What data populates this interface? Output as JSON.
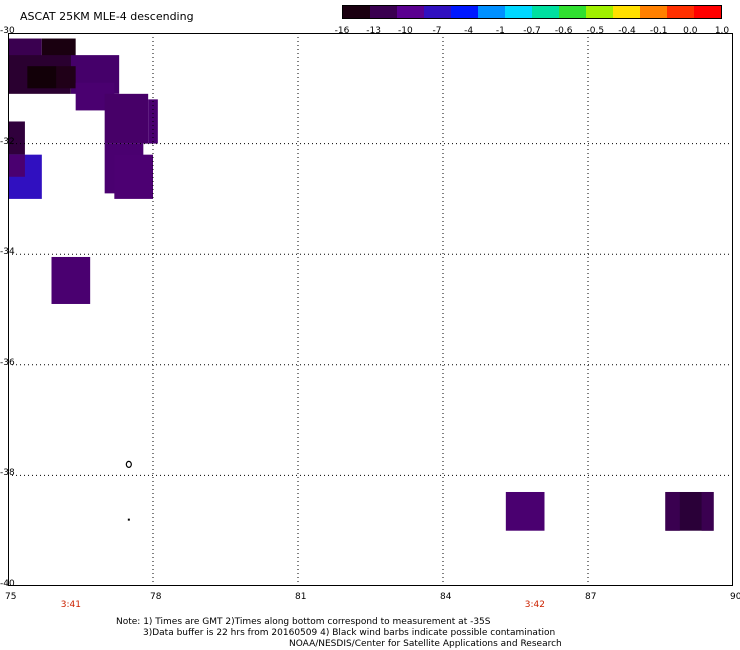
{
  "title": "ASCAT 25KM MLE-4 descending",
  "colorbar": {
    "labels": [
      "-16",
      "-13",
      "-10",
      "-7",
      "-4",
      "-1",
      "-0.7",
      "-0.6",
      "-0.5",
      "-0.4",
      "-0.1",
      "0.0",
      "1.0"
    ],
    "colors": [
      "#1a0010",
      "#3a0050",
      "#5a0090",
      "#3010c0",
      "#0018ff",
      "#0090ff",
      "#00d8ff",
      "#00e0a0",
      "#30e030",
      "#a0f000",
      "#ffe000",
      "#ff8000",
      "#ff3000",
      "#ff0000"
    ]
  },
  "map": {
    "lon_range": [
      75,
      90
    ],
    "lat_range": [
      -40,
      -30
    ],
    "lon_ticks": [
      "75",
      "78",
      "81",
      "84",
      "87",
      "90"
    ],
    "lat_ticks": [
      "-30",
      "-32",
      "-34",
      "-36",
      "-38",
      "-40"
    ],
    "grid": "dotted",
    "cells": [
      {
        "lon0": 75.0,
        "lon1": 75.7,
        "lat0": -31.0,
        "lat1": -30.1,
        "color": "#3a0050"
      },
      {
        "lon0": 75.7,
        "lon1": 76.4,
        "lat0": -31.0,
        "lat1": -30.1,
        "color": "#1a0010"
      },
      {
        "lon0": 75.0,
        "lon1": 76.3,
        "lat0": -31.1,
        "lat1": -30.4,
        "color": "#2a0030"
      },
      {
        "lon0": 76.3,
        "lon1": 77.3,
        "lat0": -31.1,
        "lat1": -30.4,
        "color": "#45006a"
      },
      {
        "lon0": 75.4,
        "lon1": 76.0,
        "lat0": -31.0,
        "lat1": -30.6,
        "color": "#120008"
      },
      {
        "lon0": 76.0,
        "lon1": 76.4,
        "lat0": -31.0,
        "lat1": -30.6,
        "color": "#200018"
      },
      {
        "lon0": 76.4,
        "lon1": 77.2,
        "lat0": -31.4,
        "lat1": -30.9,
        "color": "#4a0070"
      },
      {
        "lon0": 77.0,
        "lon1": 77.9,
        "lat0": -32.0,
        "lat1": -31.1,
        "color": "#470068"
      },
      {
        "lon0": 77.9,
        "lon1": 78.1,
        "lat0": -32.0,
        "lat1": -31.2,
        "color": "#4a0070"
      },
      {
        "lon0": 77.0,
        "lon1": 77.8,
        "lat0": -32.9,
        "lat1": -32.0,
        "color": "#4a0070"
      },
      {
        "lon0": 77.2,
        "lon1": 78.0,
        "lat0": -33.0,
        "lat1": -32.2,
        "color": "#4c0072"
      },
      {
        "lon0": 75.0,
        "lon1": 75.35,
        "lat0": -32.2,
        "lat1": -31.6,
        "color": "#30003c"
      },
      {
        "lon0": 75.0,
        "lon1": 75.7,
        "lat0": -33.0,
        "lat1": -32.2,
        "color": "#3010c0"
      },
      {
        "lon0": 75.0,
        "lon1": 75.35,
        "lat0": -32.6,
        "lat1": -32.2,
        "color": "#4a0070"
      },
      {
        "lon0": 75.9,
        "lon1": 76.7,
        "lat0": -34.9,
        "lat1": -34.05,
        "color": "#4a0070"
      },
      {
        "lon0": 85.3,
        "lon1": 86.1,
        "lat0": -39.0,
        "lat1": -38.3,
        "color": "#4a0070"
      },
      {
        "lon0": 88.6,
        "lon1": 89.6,
        "lat0": -39.0,
        "lat1": -38.3,
        "color": "#2a0038"
      },
      {
        "lon0": 88.6,
        "lon1": 88.9,
        "lat0": -39.0,
        "lat1": -38.3,
        "color": "#3a0050"
      },
      {
        "lon0": 89.35,
        "lon1": 89.6,
        "lat0": -39.0,
        "lat1": -38.3,
        "color": "#3a0050"
      }
    ],
    "markers": [
      {
        "lon": 77.5,
        "lat": -37.8,
        "type": "ring"
      },
      {
        "lon": 77.5,
        "lat": -38.8,
        "type": "dot"
      }
    ]
  },
  "times": [
    {
      "label": "3:41",
      "lon": 76.3
    },
    {
      "label": "3:42",
      "lon": 85.9
    }
  ],
  "notes": {
    "line1": "Note: 1) Times are GMT 2)Times along bottom correspond to measurement at -35S",
    "line2": "3)Data buffer is 22 hrs from 20160509 4) Black wind barbs indicate possible contamination",
    "line3": "NOAA/NESDIS/Center for Satellite Applications and Research"
  }
}
